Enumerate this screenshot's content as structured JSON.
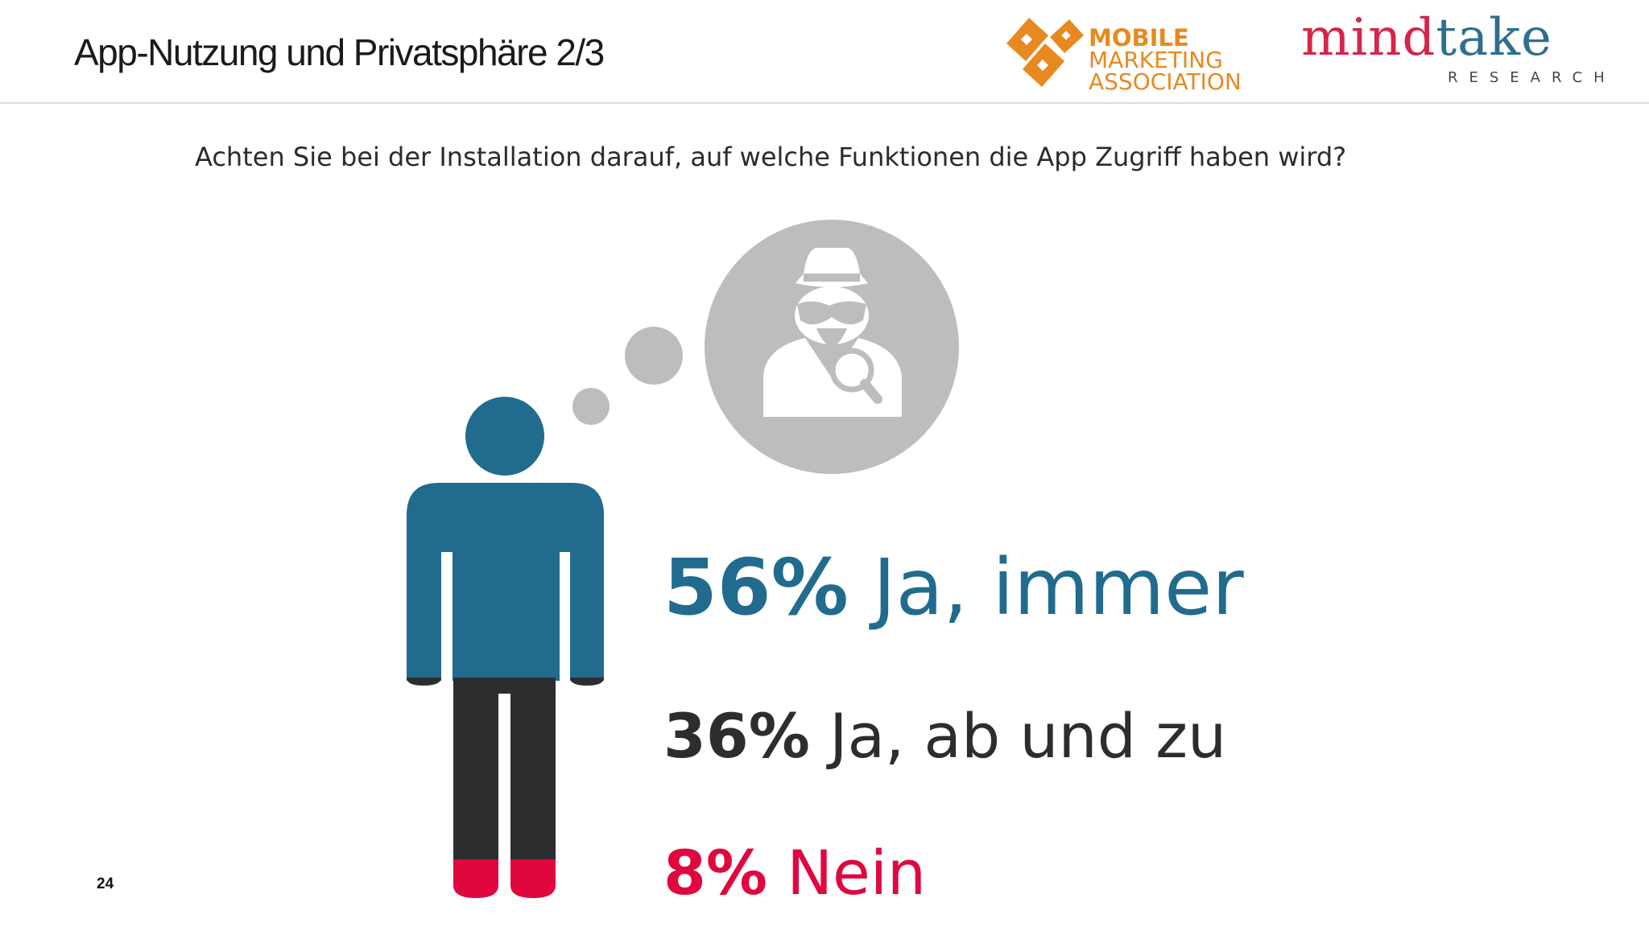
{
  "header": {
    "title": "App-Nutzung und Privatsphäre 2/3",
    "logos": {
      "mma": {
        "line1": "MOBILE",
        "line2": "MARKETING",
        "line3": "ASSOCIATION",
        "color": "#e8891f"
      },
      "mindtake": {
        "word_part1": "mind",
        "word_part2": "take",
        "subtitle": "RESEARCH"
      }
    }
  },
  "question": "Achten Sie bei der Installation darauf, auf welche Funktionen die App Zugriff haben wird?",
  "chart_data": {
    "type": "pie",
    "title": "",
    "categories": [
      "Ja, immer",
      "Ja, ab und zu",
      "Nein"
    ],
    "values": [
      56,
      36,
      8
    ],
    "value_labels": [
      "56%",
      "36%",
      "8%"
    ],
    "colors": [
      "#216b8e",
      "#2d2d30",
      "#e0073f"
    ]
  },
  "page_number": "24"
}
